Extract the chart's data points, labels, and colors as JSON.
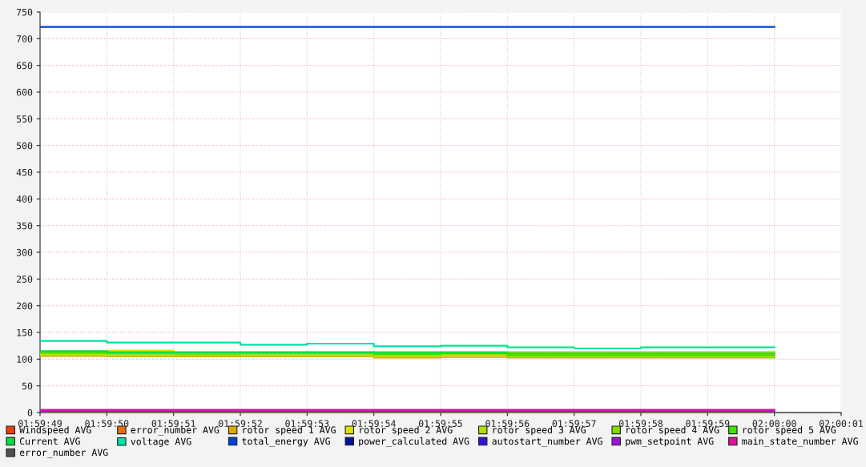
{
  "chart_data": {
    "type": "step",
    "categories": [
      "01:59:49",
      "01:59:50",
      "01:59:51",
      "01:59:52",
      "01:59:53",
      "01:59:54",
      "01:59:55",
      "01:59:56",
      "01:59:57",
      "01:59:58",
      "01:59:59",
      "02:00:00",
      "02:00:01"
    ],
    "ylim": [
      0,
      750
    ],
    "yticks": [
      0,
      50,
      100,
      150,
      200,
      250,
      300,
      350,
      400,
      450,
      500,
      550,
      600,
      650,
      700,
      750
    ],
    "grid": true,
    "legend": "bottom",
    "line_style": "solid",
    "series": [
      {
        "name": "Windspeed AVG",
        "color": "#e8400c",
        "values": [
          null,
          null,
          null,
          null,
          null,
          null,
          null,
          null,
          null,
          null,
          null,
          null,
          null
        ]
      },
      {
        "name": "error_number AVG",
        "color": "#e07010",
        "values": [
          null,
          null,
          null,
          null,
          null,
          null,
          null,
          null,
          null,
          null,
          null,
          null,
          null
        ]
      },
      {
        "name": "rotor speed 1 AVG",
        "color": "#e0a800",
        "values": [
          106,
          105,
          105,
          105,
          105,
          103,
          104,
          103,
          103,
          103,
          103,
          103,
          null
        ]
      },
      {
        "name": "rotor speed 2 AVG",
        "color": "#e0e000",
        "values": [
          111,
          116,
          111,
          111,
          111,
          114,
          114,
          114,
          114,
          114,
          114,
          114,
          null
        ]
      },
      {
        "name": "rotor speed 3 AVG",
        "color": "#b0e000",
        "values": [
          108,
          107,
          107,
          107,
          107,
          105,
          108,
          105,
          105,
          105,
          105,
          105,
          null
        ]
      },
      {
        "name": "rotor speed 4 AVG",
        "color": "#80e000",
        "values": [
          111,
          110,
          109,
          110,
          110,
          108,
          110,
          109,
          109,
          109,
          109,
          109,
          null
        ]
      },
      {
        "name": "rotor speed 5 AVG",
        "color": "#40e000",
        "values": [
          113,
          112,
          112,
          112,
          112,
          110,
          111,
          107,
          107,
          107,
          107,
          107,
          null
        ]
      },
      {
        "name": "Current AVG",
        "color": "#00e040",
        "values": [
          115,
          113,
          113,
          113,
          113,
          112,
          112,
          111,
          111,
          111,
          111,
          111,
          null
        ]
      },
      {
        "name": "voltage AVG",
        "color": "#00e0a8",
        "values": [
          134,
          131,
          131,
          127,
          129,
          124,
          125,
          122,
          120,
          122,
          122,
          122,
          null
        ]
      },
      {
        "name": "total_energy AVG",
        "color": "#0040e0",
        "values": [
          722,
          722,
          722,
          722,
          722,
          722,
          722,
          722,
          722,
          722,
          722,
          722,
          null
        ]
      },
      {
        "name": "power_calculated AVG",
        "color": "#0010a0",
        "values": [
          null,
          null,
          null,
          null,
          null,
          null,
          null,
          null,
          null,
          null,
          null,
          null,
          null
        ]
      },
      {
        "name": "autostart_number AVG",
        "color": "#3010e0",
        "values": [
          null,
          null,
          null,
          null,
          null,
          null,
          null,
          null,
          null,
          null,
          null,
          null,
          null
        ]
      },
      {
        "name": "pwm_setpoint AVG",
        "color": "#a010e0",
        "values": [
          3,
          3,
          3,
          3,
          3,
          3,
          3,
          3,
          3,
          3,
          3,
          3,
          null
        ]
      },
      {
        "name": "main_state_number AVG",
        "color": "#e010a0",
        "values": [
          5,
          5,
          5,
          5,
          5,
          5,
          5,
          5,
          5,
          5,
          5,
          5,
          null
        ]
      },
      {
        "name": "error_number AVG",
        "color": "#505050",
        "values": [
          null,
          null,
          null,
          null,
          null,
          null,
          null,
          null,
          null,
          null,
          null,
          null,
          null
        ]
      }
    ]
  }
}
